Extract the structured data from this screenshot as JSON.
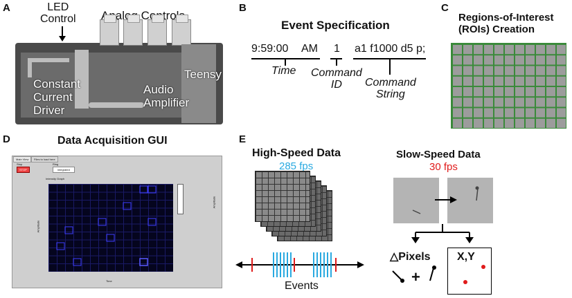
{
  "panels": {
    "a": {
      "letter": "A",
      "led_label": "LED\nControl",
      "analog_label": "Analog Controls",
      "teensy": "Teensy",
      "driver": "Constant\nCurrent\nDriver",
      "amp": "Audio\nAmplifier"
    },
    "b": {
      "letter": "B",
      "title": "Event Specification",
      "time_value": "9:59:00",
      "am": "AM",
      "cmd_id_value": "1",
      "cmd_string_value": "a1 f1000 d5 p;",
      "time_caption": "Time",
      "cmd_id_caption": "Command\nID",
      "cmd_string_caption": "Command\nString"
    },
    "c": {
      "letter": "C",
      "title": "Regions-of-Interest\n(ROIs) Creation"
    },
    "d": {
      "letter": "D",
      "title": "Data Acquisition GUI",
      "tab1": "Main View",
      "tab2": "Files to load here",
      "stop_label": "Stop",
      "stop_btn": "STOP",
      "ring_label": "Ring",
      "ring_value": "integrated",
      "graph_label": "Intensity Graph",
      "ylabel": "Amplitude",
      "xlabel": "Time",
      "scale_label": "Amplitude"
    },
    "e": {
      "letter": "E",
      "high_title": "High-Speed Data",
      "high_fps": "285 fps",
      "slow_title": "Slow-Speed Data",
      "slow_fps": "30 fps",
      "events": "Events",
      "pixels": "△Pixels",
      "plus": "+",
      "xy": "X,Y"
    }
  },
  "colors": {
    "fps_high": "#29a9e0",
    "fps_slow": "#e01b1b",
    "event_line": "#29a9e0",
    "event_marker": "#e01b1b",
    "roi_grid": "#3a8a3a"
  }
}
